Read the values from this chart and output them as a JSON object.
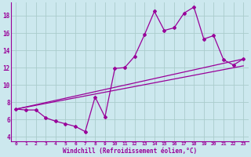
{
  "xlabel": "Windchill (Refroidissement éolien,°C)",
  "bg_color": "#cce8ee",
  "line_color": "#990099",
  "grid_color": "#aacccc",
  "x_ticks": [
    0,
    1,
    2,
    3,
    4,
    5,
    6,
    7,
    8,
    9,
    10,
    11,
    12,
    13,
    14,
    15,
    16,
    17,
    18,
    19,
    20,
    21,
    22,
    23
  ],
  "y_ticks": [
    4,
    6,
    8,
    10,
    12,
    14,
    16,
    18
  ],
  "ylim": [
    3.5,
    19.5
  ],
  "xlim": [
    -0.5,
    23.5
  ],
  "curve1_x": [
    0,
    1,
    2,
    3,
    4,
    5,
    6,
    7,
    8,
    9,
    10,
    11,
    12,
    13,
    14,
    15,
    16,
    17,
    18,
    19,
    20,
    21,
    22,
    23
  ],
  "curve1_y": [
    7.2,
    7.1,
    7.1,
    6.2,
    5.8,
    5.5,
    5.2,
    4.6,
    8.6,
    6.3,
    11.9,
    12.0,
    13.3,
    15.8,
    18.5,
    16.3,
    16.6,
    18.3,
    19.0,
    15.3,
    15.7,
    12.9,
    12.3,
    13.0
  ],
  "curve2_x": [
    0,
    23
  ],
  "curve2_y": [
    7.2,
    12.2
  ],
  "curve3_x": [
    0,
    23
  ],
  "curve3_y": [
    7.2,
    13.0
  ]
}
